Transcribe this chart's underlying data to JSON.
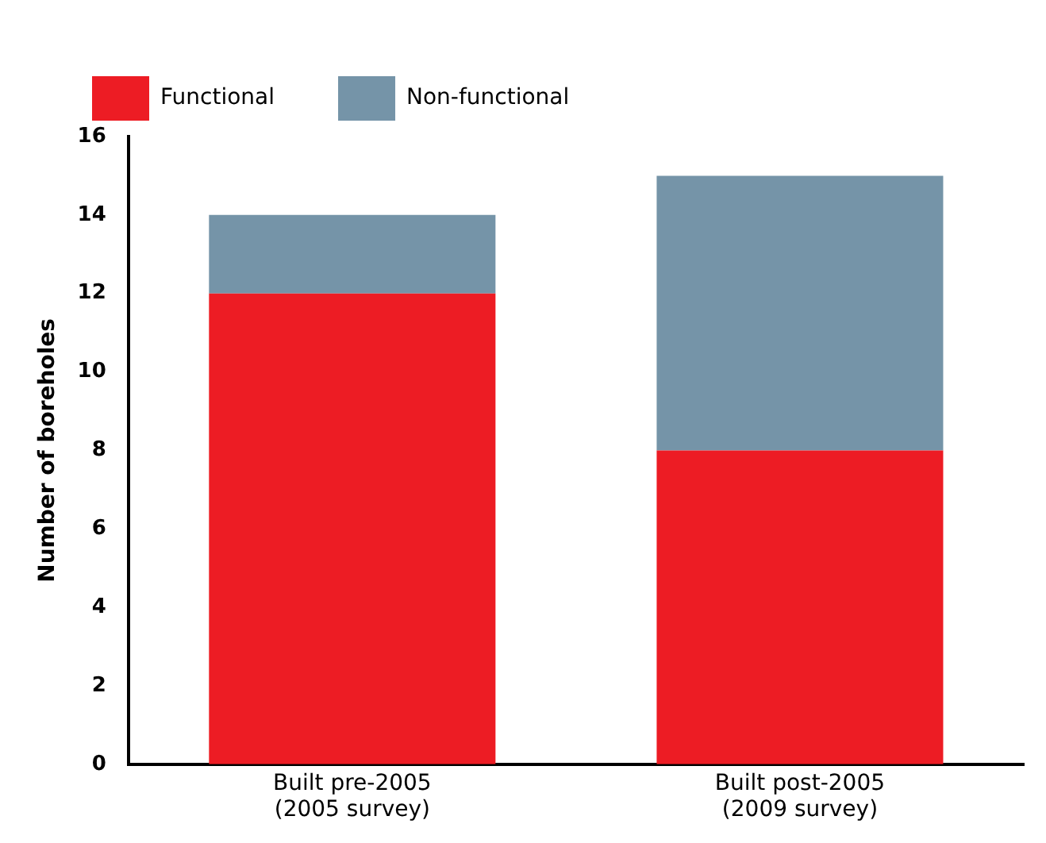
{
  "chart_data": {
    "type": "bar",
    "stacked": true,
    "ylabel": "Number of boreholes",
    "categories": [
      "Built pre-2005\n(2005 survey)",
      "Built post-2005\n(2009 survey)"
    ],
    "series": [
      {
        "name": "Functional",
        "color": "#ed1c24",
        "values": [
          12,
          8
        ]
      },
      {
        "name": "Non-functional",
        "color": "#7594a8",
        "values": [
          2,
          7
        ]
      }
    ],
    "ylim": [
      0,
      16
    ],
    "yticks": [
      0,
      2,
      4,
      6,
      8,
      10,
      12,
      14,
      16
    ],
    "grid": false,
    "legend": "top left"
  }
}
